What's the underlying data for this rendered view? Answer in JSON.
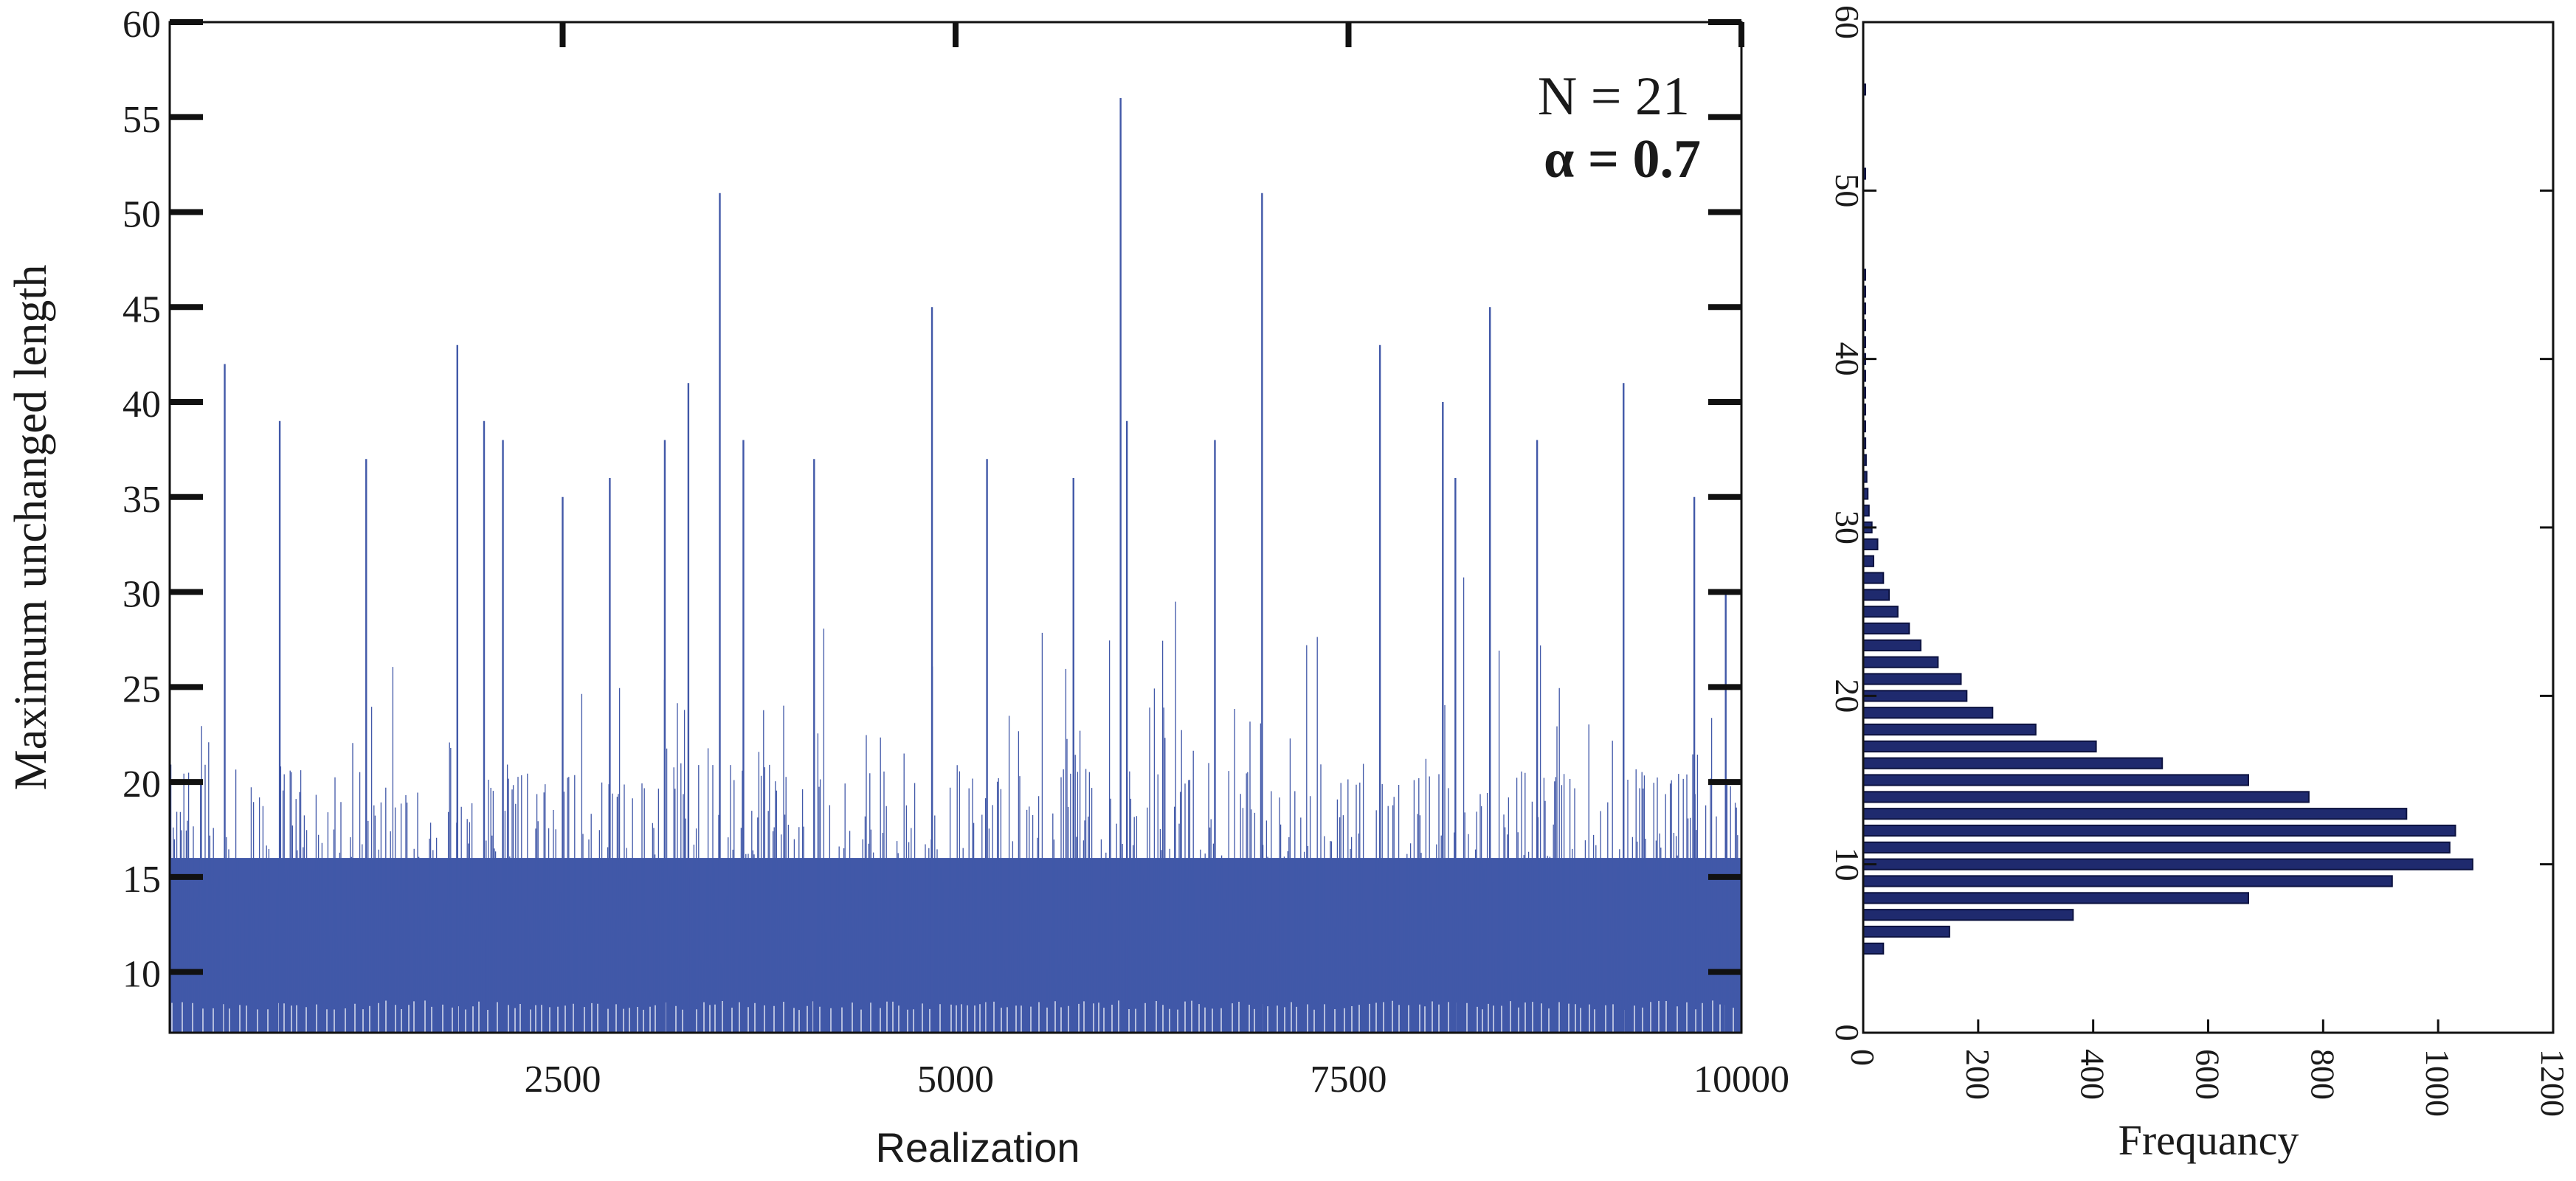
{
  "chart_data": [
    {
      "type": "bar",
      "title": "",
      "xlabel": "Realization",
      "ylabel": "Maximum unchanged length",
      "xlim": [
        0,
        10000
      ],
      "ylim": [
        6.8,
        60
      ],
      "xticks": [
        2500,
        5000,
        7500,
        10000
      ],
      "xtick_labels": [
        "2500",
        "5000",
        "7500",
        "10000"
      ],
      "yticks": [
        10,
        15,
        20,
        25,
        30,
        35,
        40,
        45,
        50,
        55,
        60
      ],
      "ytick_labels": [
        "10",
        "15",
        "20",
        "25",
        "30",
        "35",
        "40",
        "45",
        "50",
        "55",
        "60"
      ],
      "annotations": [
        "N = 21",
        "α = 0.7"
      ],
      "series_color": "#4158a8",
      "n_realizations": 10000,
      "base_range": [
        8,
        21
      ],
      "spikes": [
        {
          "x": 350,
          "y": 42
        },
        {
          "x": 700,
          "y": 39
        },
        {
          "x": 1250,
          "y": 37
        },
        {
          "x": 1830,
          "y": 43
        },
        {
          "x": 2000,
          "y": 39
        },
        {
          "x": 2120,
          "y": 38
        },
        {
          "x": 2500,
          "y": 35
        },
        {
          "x": 2800,
          "y": 36
        },
        {
          "x": 3150,
          "y": 38
        },
        {
          "x": 3300,
          "y": 41
        },
        {
          "x": 3500,
          "y": 51
        },
        {
          "x": 3650,
          "y": 38
        },
        {
          "x": 4100,
          "y": 37
        },
        {
          "x": 4850,
          "y": 45
        },
        {
          "x": 5200,
          "y": 37
        },
        {
          "x": 5750,
          "y": 36
        },
        {
          "x": 6050,
          "y": 56
        },
        {
          "x": 6090,
          "y": 39
        },
        {
          "x": 6650,
          "y": 38
        },
        {
          "x": 6950,
          "y": 51
        },
        {
          "x": 7700,
          "y": 43
        },
        {
          "x": 8100,
          "y": 40
        },
        {
          "x": 8180,
          "y": 36
        },
        {
          "x": 8400,
          "y": 45
        },
        {
          "x": 8700,
          "y": 38
        },
        {
          "x": 9250,
          "y": 41
        },
        {
          "x": 9700,
          "y": 35
        },
        {
          "x": 9900,
          "y": 30
        }
      ]
    },
    {
      "type": "bar",
      "orientation": "horizontal",
      "title": "",
      "xlabel": "Frequancy",
      "ylabel": "",
      "xlim": [
        0,
        1200
      ],
      "ylim": [
        0,
        60
      ],
      "xticks": [
        0,
        200,
        400,
        600,
        800,
        1000,
        1200
      ],
      "xtick_labels": [
        "0",
        "200",
        "400",
        "600",
        "800",
        "1000",
        "1200"
      ],
      "yticks": [
        0,
        10,
        20,
        30,
        40,
        50,
        60
      ],
      "ytick_labels": [
        "0",
        "10",
        "20",
        "30",
        "40",
        "50",
        "60"
      ],
      "bar_color": "#1f2a6e",
      "categories": [
        5,
        6,
        7,
        8,
        9,
        10,
        11,
        12,
        13,
        14,
        15,
        16,
        17,
        18,
        19,
        20,
        21,
        22,
        23,
        24,
        25,
        26,
        27,
        28,
        29,
        30,
        31,
        32,
        33,
        34,
        35,
        36,
        37,
        38,
        39,
        40,
        41,
        42,
        43,
        44,
        45,
        51,
        56
      ],
      "values": [
        35,
        150,
        365,
        670,
        920,
        1060,
        1020,
        1030,
        945,
        775,
        670,
        520,
        405,
        300,
        225,
        180,
        170,
        130,
        100,
        80,
        60,
        45,
        35,
        18,
        25,
        15,
        10,
        8,
        6,
        5,
        4,
        3,
        3,
        2,
        2,
        2,
        1,
        1,
        1,
        1,
        1,
        1,
        1
      ]
    }
  ]
}
